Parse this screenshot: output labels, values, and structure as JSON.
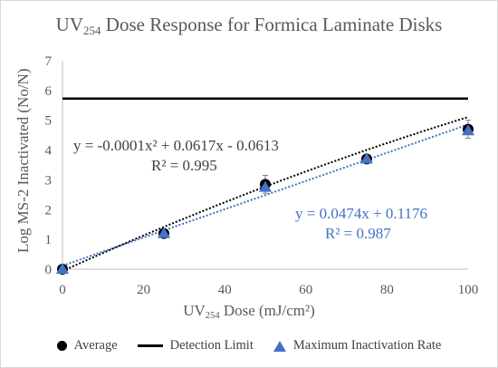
{
  "chart_data": {
    "type": "scatter",
    "title_main": "UV",
    "title_sub": "254",
    "title_rest": " Dose Response for Formica Laminate Disks",
    "xlabel_main": "UV",
    "xlabel_sub": "254",
    "xlabel_rest": " Dose (mJ/cm²)",
    "ylabel": "Log MS-2 Inactivated (No/N)",
    "xlim": [
      0,
      100
    ],
    "ylim": [
      0,
      7
    ],
    "x_ticks": [
      "0",
      "20",
      "40",
      "60",
      "80",
      "100"
    ],
    "y_ticks": [
      "0",
      "1",
      "2",
      "3",
      "4",
      "5",
      "6",
      "7"
    ],
    "grid": false,
    "legend_position": "bottom",
    "series": [
      {
        "name": "Average",
        "marker": "circle",
        "color": "#000000",
        "x": [
          0,
          25,
          50,
          75,
          100
        ],
        "y": [
          0.0,
          1.2,
          2.85,
          3.7,
          4.7
        ],
        "error": [
          0.05,
          0.08,
          0.3,
          0.1,
          0.3
        ]
      },
      {
        "name": "Detection Limit",
        "marker": "line",
        "color": "#000000",
        "x": [
          0,
          100
        ],
        "y": [
          5.73,
          5.73
        ]
      },
      {
        "name": "Maximum Inactivation Rate",
        "marker": "triangle",
        "color": "#4472c4",
        "x": [
          0,
          25,
          50,
          75,
          100
        ],
        "y": [
          0.0,
          1.2,
          2.75,
          3.7,
          4.65
        ]
      }
    ],
    "trendlines": [
      {
        "series": "Average",
        "type": "poly2",
        "a": -0.0001,
        "b": 0.0617,
        "c": -0.0613,
        "color": "#000000"
      },
      {
        "series": "Maximum Inactivation Rate",
        "type": "linear",
        "m": 0.0474,
        "b": 0.1176,
        "color": "#4472c4"
      }
    ],
    "annotations": {
      "poly_equation": "y = -0.0001x² + 0.0617x - 0.0613",
      "poly_r2": "R² = 0.995",
      "linear_equation": "y = 0.0474x + 0.1176",
      "linear_r2": "R² = 0.987"
    }
  },
  "legend": {
    "average": "Average",
    "detection_limit": "Detection Limit",
    "max_rate": "Maximum Inactivation Rate"
  },
  "colors": {
    "axis": "#595959",
    "poly_text": "#404040",
    "linear_text": "#4472c4"
  }
}
